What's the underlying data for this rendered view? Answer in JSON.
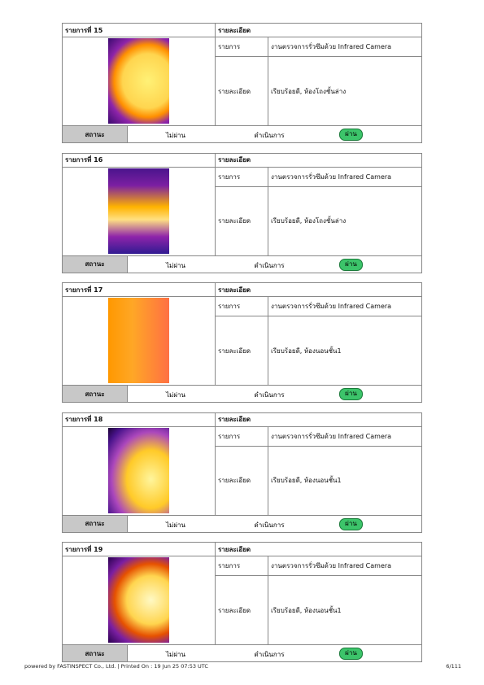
{
  "items": [
    {
      "title": "รายการที่ 15",
      "detail_header": "รายละเอียด",
      "row1_label": "รายการ",
      "row1_value": "งานตรวจการรั่วซึมด้วย Infrared Camera",
      "row2_label": "รายละเอียด",
      "row2_value": "เรียบร้อยดี, ห้องโถงชั้นล่าง",
      "status_label": "สถานะ",
      "fail": "ไม่ผ่าน",
      "action": "ดำเนินการ",
      "pass": "ผ่าน"
    },
    {
      "title": "รายการที่ 16",
      "detail_header": "รายละเอียด",
      "row1_label": "รายการ",
      "row1_value": "งานตรวจการรั่วซึมด้วย Infrared Camera",
      "row2_label": "รายละเอียด",
      "row2_value": "เรียบร้อยดี, ห้องโถงชั้นล่าง",
      "status_label": "สถานะ",
      "fail": "ไม่ผ่าน",
      "action": "ดำเนินการ",
      "pass": "ผ่าน"
    },
    {
      "title": "รายการที่ 17",
      "detail_header": "รายละเอียด",
      "row1_label": "รายการ",
      "row1_value": "งานตรวจการรั่วซึมด้วย Infrared Camera",
      "row2_label": "รายละเอียด",
      "row2_value": "เรียบร้อยดี, ห้องนอนชั้น1",
      "status_label": "สถานะ",
      "fail": "ไม่ผ่าน",
      "action": "ดำเนินการ",
      "pass": "ผ่าน"
    },
    {
      "title": "รายการที่ 18",
      "detail_header": "รายละเอียด",
      "row1_label": "รายการ",
      "row1_value": "งานตรวจการรั่วซึมด้วย Infrared Camera",
      "row2_label": "รายละเอียด",
      "row2_value": "เรียบร้อยดี, ห้องนอนชั้น1",
      "status_label": "สถานะ",
      "fail": "ไม่ผ่าน",
      "action": "ดำเนินการ",
      "pass": "ผ่าน"
    },
    {
      "title": "รายการที่ 19",
      "detail_header": "รายละเอียด",
      "row1_label": "รายการ",
      "row1_value": "งานตรวจการรั่วซึมด้วย Infrared Camera",
      "row2_label": "รายละเอียด",
      "row2_value": "เรียบร้อยดี, ห้องนอนชั้น1",
      "status_label": "สถานะ",
      "fail": "ไม่ผ่าน",
      "action": "ดำเนินการ",
      "pass": "ผ่าน"
    }
  ],
  "footer": {
    "left": "powered by FASTINSPECT Co., Ltd. | Printed On : 19 Jun 25 07:53 UTC",
    "right": "6/111"
  }
}
